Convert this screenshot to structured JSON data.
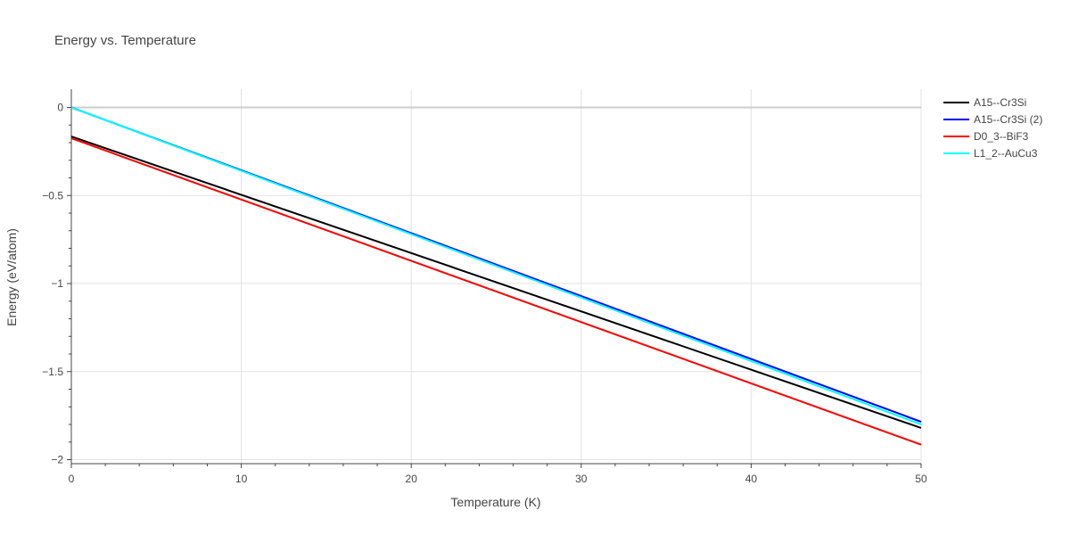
{
  "chart_data": {
    "type": "line",
    "title": "Energy vs. Temperature",
    "xlabel": "Temperature (K)",
    "ylabel": "Energy (eV/atom)",
    "xlim": [
      0,
      50
    ],
    "ylim": [
      -2.0,
      0.0
    ],
    "grid": true,
    "legend_position": "top-right",
    "x_ticks": [
      0,
      10,
      20,
      30,
      40,
      50
    ],
    "x_tick_labels": [
      "0",
      "10",
      "20",
      "30",
      "40",
      "50"
    ],
    "y_ticks": [
      0,
      -0.5,
      -1,
      -1.5,
      -2
    ],
    "y_tick_labels": [
      "0",
      "−0.5",
      "−1",
      "−1.5",
      "−2"
    ],
    "series": [
      {
        "name": "A15--Cr3Si",
        "color": "#000000",
        "x": [
          0,
          50
        ],
        "y": [
          -0.165,
          -1.82
        ]
      },
      {
        "name": "A15--Cr3Si (2)",
        "color": "#0000ff",
        "x": [
          0,
          50
        ],
        "y": [
          0.0,
          -1.785
        ]
      },
      {
        "name": "D0_3--BiF3",
        "color": "#ff0000",
        "x": [
          0,
          50
        ],
        "y": [
          -0.175,
          -1.915
        ]
      },
      {
        "name": "L1_2--AuCu3",
        "color": "#00ffff",
        "x": [
          0,
          50
        ],
        "y": [
          0.0,
          -1.8
        ]
      }
    ]
  }
}
